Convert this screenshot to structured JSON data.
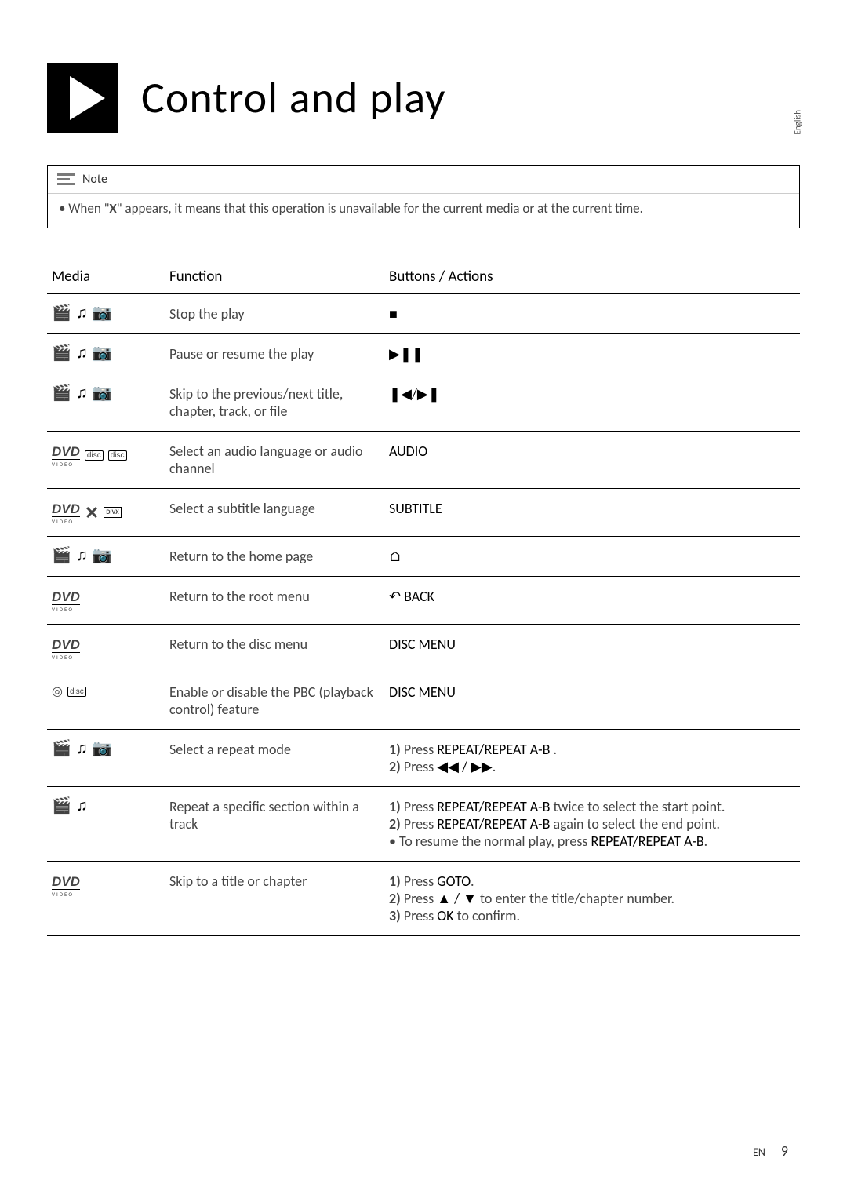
{
  "header": {
    "title": "Control and play"
  },
  "language_label": "English",
  "note": {
    "label": "Note",
    "body_prefix": "• When \"",
    "body_x": "X",
    "body_suffix": "\" appears, it means that this operation is unavailable for the current media or at the current time."
  },
  "table": {
    "headers": {
      "media": "Media",
      "function": "Function",
      "buttons": "Buttons / Actions"
    },
    "rows": [
      {
        "media_icons": "vap",
        "function": "Stop the play",
        "action_icon": "■"
      },
      {
        "media_icons": "vap",
        "function": "Pause or resume the play",
        "action_icon": "▶❚❚"
      },
      {
        "media_icons": "vap",
        "function": "Skip to the previous/next title, chapter, track, or file",
        "action_icon": "❚◀/▶❚"
      },
      {
        "media_icons": "dvd_disc_disc",
        "function": "Select an audio language or audio channel",
        "action_text": "AUDIO"
      },
      {
        "media_icons": "dvd_divx",
        "function": "Select a subtitle language",
        "action_text": "SUBTITLE"
      },
      {
        "media_icons": "vap",
        "function": "Return to the home page",
        "action_icon": "⌂"
      },
      {
        "media_icons": "dvd",
        "function": "Return to the root menu",
        "action_icon": "↶",
        "action_text": "BACK"
      },
      {
        "media_icons": "dvd",
        "function": "Return to the disc menu",
        "action_text": "DISC MENU"
      },
      {
        "media_icons": "disc_disc",
        "function": "Enable or disable the PBC (playback control) feature",
        "action_text": "DISC MENU"
      },
      {
        "media_icons": "vap",
        "function": "Select a repeat mode",
        "action_lines": [
          {
            "step": "1)",
            "pre": " Press ",
            "bold": "REPEAT/REPEAT A-B",
            "post": " ."
          },
          {
            "step": "2)",
            "pre": " Press ",
            "bold": "◀◀ / ▶▶",
            "post": "."
          }
        ]
      },
      {
        "media_icons": "va",
        "function": "Repeat a specific section within a track",
        "action_lines": [
          {
            "step": "1)",
            "pre": " Press ",
            "bold": "REPEAT/REPEAT A-B",
            "post": "  twice to select the start point."
          },
          {
            "step": "2)",
            "pre": " Press ",
            "bold": "REPEAT/REPEAT A-B",
            "post": " again to select the end point."
          },
          {
            "bullet": "•",
            "pre": " To resume the normal play, press ",
            "bold": "REPEAT/REPEAT A-B",
            "post": "."
          }
        ]
      },
      {
        "media_icons": "dvd",
        "function": "Skip to a title or chapter",
        "action_lines": [
          {
            "step": "1)",
            "pre": " Press ",
            "bold": "GOTO",
            "post": "."
          },
          {
            "step": "2)",
            "pre": " Press ",
            "bold": "▲ / ▼",
            "post": " to enter the title/chapter number."
          },
          {
            "step": "3)",
            "pre": " Press ",
            "bold": "OK",
            "post": " to confirm."
          }
        ]
      }
    ]
  },
  "footer": {
    "en": "EN",
    "page": "9"
  },
  "colors": {
    "black": "#000000",
    "grey": "#444444",
    "lightgrey": "#7a7a7a",
    "white": "#ffffff"
  }
}
